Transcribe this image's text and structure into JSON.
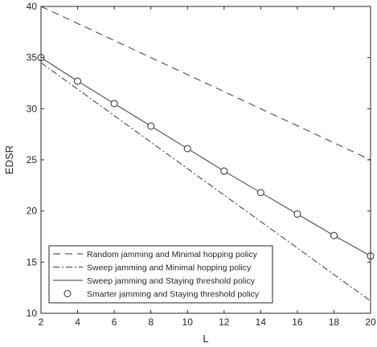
{
  "chart_data": {
    "type": "line",
    "title": "",
    "xlabel": "L",
    "ylabel": "EDSR",
    "xlim": [
      2,
      20
    ],
    "ylim": [
      10,
      40
    ],
    "xticks": [
      2,
      4,
      6,
      8,
      10,
      12,
      14,
      16,
      18,
      20
    ],
    "yticks": [
      10,
      15,
      20,
      25,
      30,
      35,
      40
    ],
    "grid": false,
    "legend_position": "bottom-left",
    "series": [
      {
        "name": "Random jamming and Minimal hopping policy",
        "style": "dashed",
        "x": [
          2,
          20
        ],
        "y": [
          40,
          25
        ]
      },
      {
        "name": "Sweep jamming and Minimal hopping policy",
        "style": "dash-dot",
        "x": [
          2,
          20
        ],
        "y": [
          34.5,
          11.2
        ]
      },
      {
        "name": "Sweep jamming and Staying threshold policy",
        "style": "solid",
        "x": [
          2,
          4,
          6,
          8,
          10,
          12,
          14,
          16,
          18,
          20
        ],
        "y": [
          35.0,
          32.7,
          30.5,
          28.3,
          26.1,
          23.9,
          21.8,
          19.7,
          17.6,
          15.6
        ]
      },
      {
        "name": "Smarter jamming and Staying threshold policy",
        "style": "circle-markers",
        "x": [
          2,
          4,
          6,
          8,
          10,
          12,
          14,
          16,
          18,
          20
        ],
        "y": [
          35.0,
          32.7,
          30.5,
          28.3,
          26.1,
          23.9,
          21.8,
          19.7,
          17.6,
          15.6
        ]
      }
    ]
  }
}
